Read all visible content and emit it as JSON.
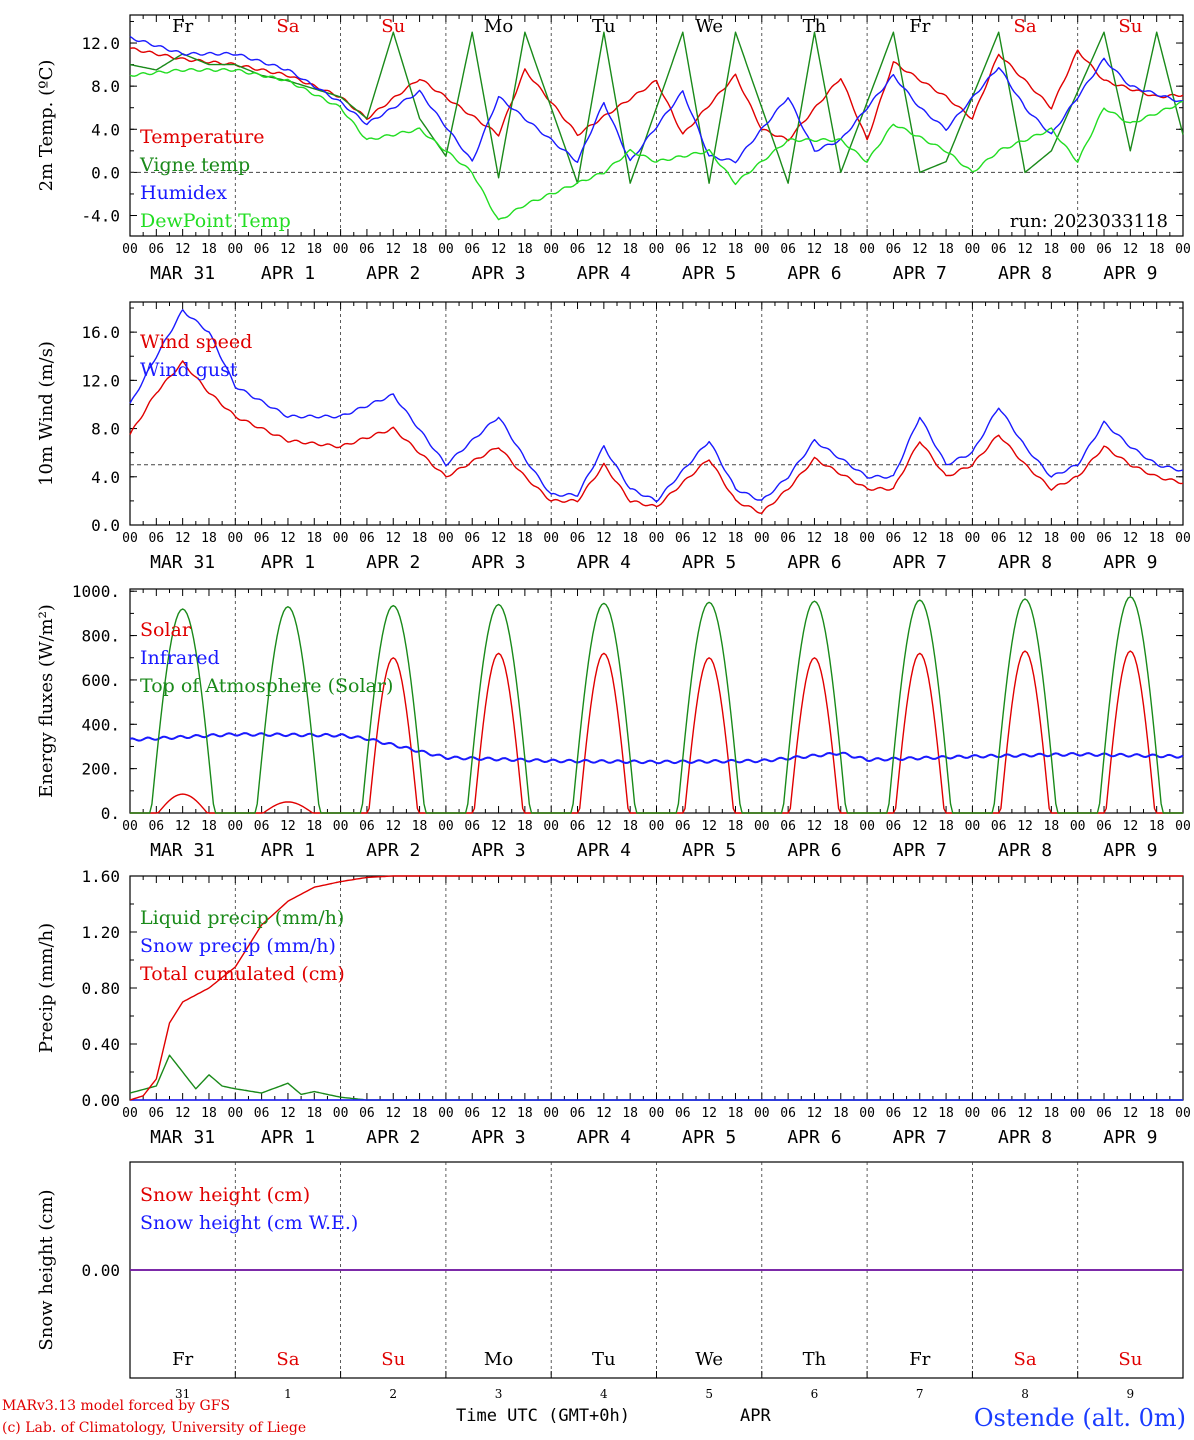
{
  "colors": {
    "red": "#e00000",
    "green": "#1a8a1a",
    "lightgreen": "#22dd22",
    "blue": "#1a1aff",
    "purple": "#7a1fa0",
    "grid": "#333333"
  },
  "weekdays": [
    {
      "label": "Fr",
      "color": "black"
    },
    {
      "label": "Sa",
      "color": "red"
    },
    {
      "label": "Su",
      "color": "red"
    },
    {
      "label": "Mo",
      "color": "black"
    },
    {
      "label": "Tu",
      "color": "black"
    },
    {
      "label": "We",
      "color": "black"
    },
    {
      "label": "Th",
      "color": "black"
    },
    {
      "label": "Fr",
      "color": "black"
    },
    {
      "label": "Sa",
      "color": "red"
    },
    {
      "label": "Su",
      "color": "red"
    }
  ],
  "date_labels": [
    "MAR 31",
    "APR  1",
    "APR  2",
    "APR  3",
    "APR  4",
    "APR  5",
    "APR  6",
    "APR  7",
    "APR  8",
    "APR  9"
  ],
  "hour_labels": [
    "00",
    "06",
    "12",
    "18"
  ],
  "last_hour_label": "00",
  "day_numbers": [
    "31",
    "1",
    "2",
    "3",
    "4",
    "5",
    "6",
    "7",
    "8",
    "9"
  ],
  "footer": {
    "model_line": "MARv3.13 model forced by GFS",
    "lab_line": "(c) Lab. of Climatology, University of Liege",
    "time_label": "Time UTC (GMT+0h)",
    "month_label": "APR",
    "station": "Ostende (alt. 0m)"
  },
  "chart_data": [
    {
      "type": "line",
      "id": "temp",
      "ylabel": "2m Temp. (ºC)",
      "ylim": [
        -5.9,
        14.6
      ],
      "yticks": [
        -4,
        0,
        4,
        8,
        12
      ],
      "ytick_labels": [
        "-4.0",
        "0.0",
        "4.0",
        "8.0",
        "12.0"
      ],
      "ref_line": 0,
      "annotation": "run: 2023033118",
      "x_unit": "hours since MAR 31 00 UTC",
      "series": [
        {
          "name": "Temperature",
          "color": "red",
          "x": [
            0,
            12,
            24,
            36,
            48,
            54,
            66,
            84,
            90,
            102,
            120,
            126,
            138,
            144,
            150,
            162,
            168,
            174,
            186,
            192,
            198,
            210,
            216,
            222,
            234,
            240
          ],
          "y": [
            11.5,
            10.5,
            10.0,
            9.0,
            7.0,
            5.0,
            8.7,
            3.5,
            9.5,
            3.5,
            8.5,
            3.5,
            9.0,
            4.0,
            3.0,
            8.8,
            3.0,
            10.2,
            7.0,
            5.0,
            11.0,
            6.0,
            11.3,
            8.5,
            7.0,
            7.2
          ]
        },
        {
          "name": "Vigne temp",
          "color": "green",
          "x": [
            0,
            6,
            12,
            18,
            24,
            30,
            36,
            48,
            54,
            60,
            66,
            72,
            78,
            84,
            90,
            102,
            108,
            114,
            126,
            132,
            138,
            150,
            156,
            162,
            174,
            180,
            186,
            198,
            204,
            210,
            222,
            228,
            234,
            240
          ],
          "y": [
            10.0,
            9.5,
            11.0,
            10.0,
            10.0,
            9.0,
            8.5,
            7.0,
            5.0,
            13.0,
            5.0,
            1.5,
            13.0,
            -0.5,
            13.0,
            -1.0,
            13.0,
            -1.0,
            13.0,
            -1.0,
            13.0,
            -1.0,
            13.0,
            0.0,
            13.0,
            0.0,
            1.0,
            13.0,
            0.0,
            2.0,
            13.0,
            2.0,
            13.0,
            3.5
          ]
        },
        {
          "name": "Humidex",
          "color": "blue",
          "x": [
            0,
            12,
            24,
            36,
            48,
            54,
            66,
            78,
            84,
            102,
            108,
            114,
            126,
            132,
            138,
            150,
            156,
            162,
            174,
            180,
            186,
            198,
            204,
            210,
            222,
            228,
            240
          ],
          "y": [
            12.5,
            11.0,
            11.0,
            9.5,
            6.5,
            4.5,
            7.5,
            1.0,
            7.0,
            1.0,
            6.5,
            1.0,
            7.5,
            1.5,
            1.0,
            7.0,
            2.0,
            3.0,
            9.0,
            6.0,
            4.0,
            9.8,
            6.0,
            3.5,
            10.5,
            8.0,
            6.5
          ]
        },
        {
          "name": "DewPoint Temp",
          "color": "lightgreen",
          "x": [
            0,
            12,
            24,
            36,
            48,
            54,
            66,
            72,
            78,
            84,
            90,
            96,
            102,
            108,
            114,
            120,
            132,
            138,
            144,
            150,
            162,
            168,
            174,
            186,
            192,
            198,
            210,
            216,
            222,
            228,
            240
          ],
          "y": [
            9.0,
            9.5,
            9.5,
            8.5,
            6.0,
            3.0,
            4.0,
            2.0,
            0.0,
            -4.5,
            -3.0,
            -2.0,
            -1.0,
            0.0,
            2.0,
            1.0,
            2.0,
            -1.0,
            1.0,
            3.0,
            3.0,
            1.0,
            4.5,
            2.0,
            0.0,
            2.0,
            4.0,
            1.0,
            6.0,
            4.5,
            6.5
          ]
        }
      ]
    },
    {
      "type": "line",
      "id": "wind",
      "ylabel": "10m Wind (m/s)",
      "ylim": [
        0,
        18.5
      ],
      "yticks": [
        0,
        4,
        8,
        12,
        16
      ],
      "ytick_labels": [
        "0.0",
        "4.0",
        "8.0",
        "12.0",
        "16.0"
      ],
      "ref_line": 5,
      "x_unit": "hours since MAR 31 00 UTC",
      "series": [
        {
          "name": "Wind speed",
          "color": "red",
          "x": [
            0,
            6,
            12,
            18,
            24,
            36,
            48,
            60,
            72,
            84,
            90,
            96,
            102,
            108,
            114,
            120,
            132,
            138,
            144,
            150,
            156,
            168,
            174,
            180,
            186,
            192,
            198,
            204,
            210,
            216,
            222,
            228,
            234,
            240
          ],
          "y": [
            7.5,
            11.0,
            13.5,
            11.0,
            9.0,
            7.0,
            6.5,
            8.0,
            4.0,
            6.5,
            4.0,
            2.0,
            2.0,
            5.0,
            2.0,
            1.5,
            5.5,
            2.0,
            1.0,
            3.0,
            5.5,
            3.0,
            3.0,
            7.0,
            4.0,
            5.0,
            7.5,
            5.0,
            3.0,
            4.0,
            6.5,
            5.0,
            4.0,
            3.5
          ]
        },
        {
          "name": "Wind gust",
          "color": "blue",
          "x": [
            0,
            6,
            12,
            18,
            24,
            36,
            48,
            60,
            72,
            84,
            90,
            96,
            102,
            108,
            114,
            120,
            132,
            138,
            144,
            150,
            156,
            168,
            174,
            180,
            186,
            192,
            198,
            204,
            210,
            216,
            222,
            228,
            234,
            240
          ],
          "y": [
            10.0,
            14.0,
            17.8,
            16.0,
            11.5,
            9.0,
            9.0,
            10.8,
            5.0,
            9.0,
            5.5,
            2.5,
            2.5,
            6.5,
            3.0,
            2.0,
            7.0,
            3.0,
            2.0,
            4.0,
            7.0,
            4.0,
            4.0,
            9.0,
            5.0,
            6.0,
            9.8,
            6.5,
            4.0,
            5.0,
            8.5,
            6.5,
            5.0,
            4.5
          ]
        }
      ]
    },
    {
      "type": "line",
      "id": "energy",
      "ylabel": "Energy fluxes (W/m²)",
      "ylim": [
        0,
        1010
      ],
      "yticks": [
        0,
        200,
        400,
        600,
        800,
        1000
      ],
      "ytick_labels": [
        "0.",
        "200.",
        "400.",
        "600.",
        "800.",
        "1000."
      ],
      "x_unit": "hours since MAR 31 00 UTC",
      "series": [
        {
          "name": "Solar",
          "color": "red",
          "daily_peak": [
            85,
            50,
            700,
            720,
            720,
            700,
            700,
            720,
            730,
            730
          ]
        },
        {
          "name": "Infrared",
          "color": "blue",
          "x": [
            0,
            24,
            48,
            54,
            72,
            96,
            120,
            144,
            162,
            168,
            192,
            216,
            240
          ],
          "y": [
            330,
            355,
            350,
            335,
            250,
            235,
            230,
            235,
            270,
            240,
            255,
            265,
            255
          ]
        },
        {
          "name": "Top of Atmosphere (Solar)",
          "color": "green",
          "daily_peak": [
            920,
            930,
            935,
            940,
            945,
            950,
            955,
            960,
            965,
            975
          ]
        }
      ]
    },
    {
      "type": "line",
      "id": "precip",
      "ylabel": "Precip (mm/h)",
      "ylim": [
        0,
        1.6
      ],
      "yticks": [
        0,
        0.4,
        0.8,
        1.2,
        1.6
      ],
      "ytick_labels": [
        "0.00",
        "0.40",
        "0.80",
        "1.20",
        "1.60"
      ],
      "x_unit": "hours since MAR 31 00 UTC",
      "series": [
        {
          "name": "Liquid precip (mm/h)",
          "color": "green",
          "x": [
            0,
            6,
            9,
            12,
            15,
            18,
            21,
            24,
            30,
            36,
            39,
            42,
            48,
            54,
            60,
            240
          ],
          "y": [
            0.05,
            0.1,
            0.32,
            0.2,
            0.08,
            0.18,
            0.1,
            0.08,
            0.05,
            0.12,
            0.04,
            0.06,
            0.02,
            0.0,
            0.0,
            0.0
          ]
        },
        {
          "name": "Snow precip (mm/h)",
          "color": "blue",
          "x": [
            0,
            240
          ],
          "y": [
            0.0,
            0.0
          ]
        },
        {
          "name": "Total cumulated (cm)",
          "color": "red",
          "x": [
            0,
            3,
            6,
            9,
            12,
            18,
            24,
            30,
            36,
            42,
            48,
            54,
            60,
            240
          ],
          "y": [
            0.0,
            0.03,
            0.15,
            0.55,
            0.7,
            0.8,
            0.95,
            1.25,
            1.42,
            1.52,
            1.56,
            1.59,
            1.6,
            1.6
          ]
        }
      ]
    },
    {
      "type": "line",
      "id": "snow",
      "ylabel": "Snow height (cm)",
      "ylim": [
        -1,
        1
      ],
      "yticks": [
        0
      ],
      "ytick_labels": [
        "0.00"
      ],
      "x_unit": "hours since MAR 31 00 UTC",
      "series": [
        {
          "name": "Snow height (cm)",
          "color": "red",
          "x": [
            0,
            240
          ],
          "y": [
            0.0,
            0.0
          ]
        },
        {
          "name": "Snow height (cm W.E.)",
          "color": "blue",
          "x": [
            0,
            240
          ],
          "y": [
            0.0,
            0.0
          ]
        }
      ]
    }
  ]
}
